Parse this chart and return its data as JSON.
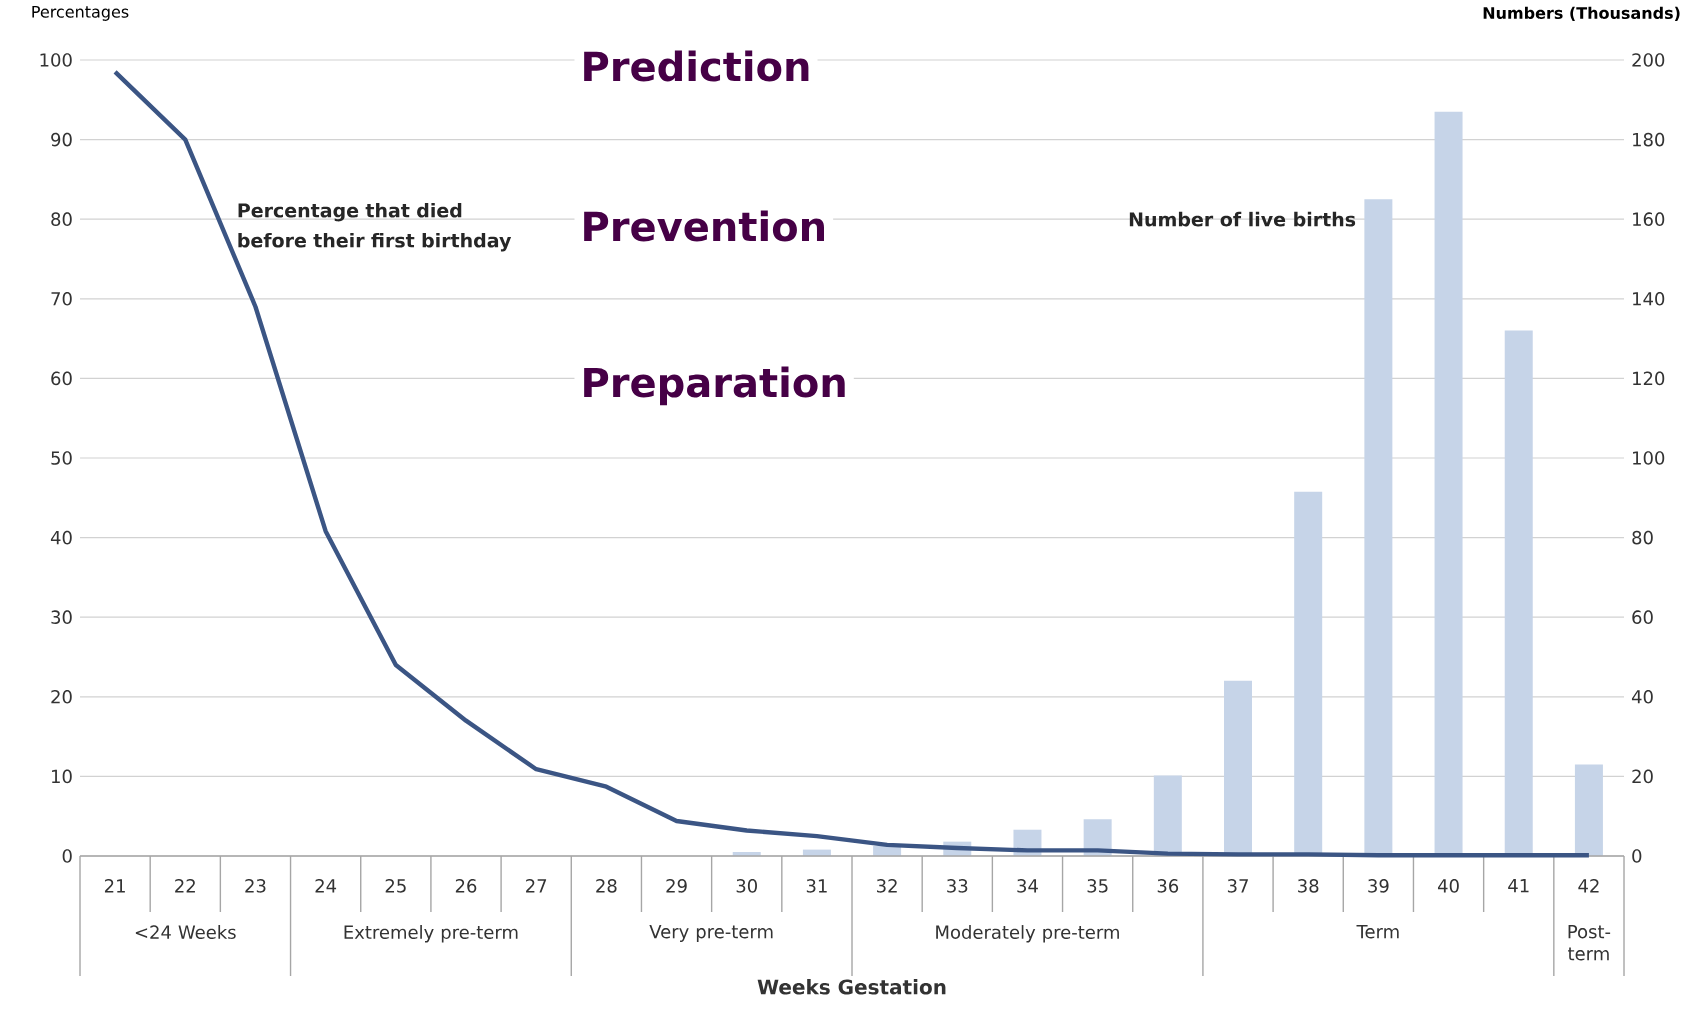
{
  "chart_data": {
    "type": "bar",
    "xlabel": "Weeks Gestation",
    "ylabel": "Percentages",
    "y2label": "Numbers (Thousands)",
    "categories": [
      "21",
      "22",
      "23",
      "24",
      "25",
      "26",
      "27",
      "28",
      "29",
      "30",
      "31",
      "32",
      "33",
      "34",
      "35",
      "36",
      "37",
      "38",
      "39",
      "40",
      "41",
      "42"
    ],
    "series": [
      {
        "name": "Number of live births",
        "axis": "y2",
        "color": "#c6d4e8",
        "values": [
          0,
          0,
          0,
          0,
          0,
          null,
          null,
          null,
          null,
          1,
          1.6,
          2.5,
          3.6,
          6.6,
          9.2,
          20.2,
          44,
          91.5,
          165,
          187,
          132,
          23
        ]
      },
      {
        "name": "Percentage that died before their first birthday",
        "type": "line",
        "color": "#3b5584",
        "values": [
          98.5,
          90,
          69,
          40.8,
          24,
          17,
          10.9,
          8.7,
          4.4,
          3.2,
          2.5,
          1.4,
          1,
          0.7,
          0.7,
          0.3,
          0.2,
          0.2,
          0.1,
          0.1,
          0.1,
          0.1
        ]
      }
    ],
    "ylim": [
      0,
      100
    ],
    "yticks": [
      0,
      10,
      20,
      30,
      40,
      50,
      60,
      70,
      80,
      90,
      100
    ],
    "y2lim": [
      0,
      200
    ],
    "y2ticks": [
      0,
      20,
      40,
      60,
      80,
      100,
      120,
      140,
      160,
      180,
      200
    ],
    "grid": "y",
    "line_style": "solid",
    "annotations": [
      "Prediction",
      "Prevention",
      "Preparation",
      "<24 Weeks",
      "Extremely pre-term",
      "Very pre-term",
      "Moderately pre-term",
      "Term",
      "Post-term"
    ]
  }
}
